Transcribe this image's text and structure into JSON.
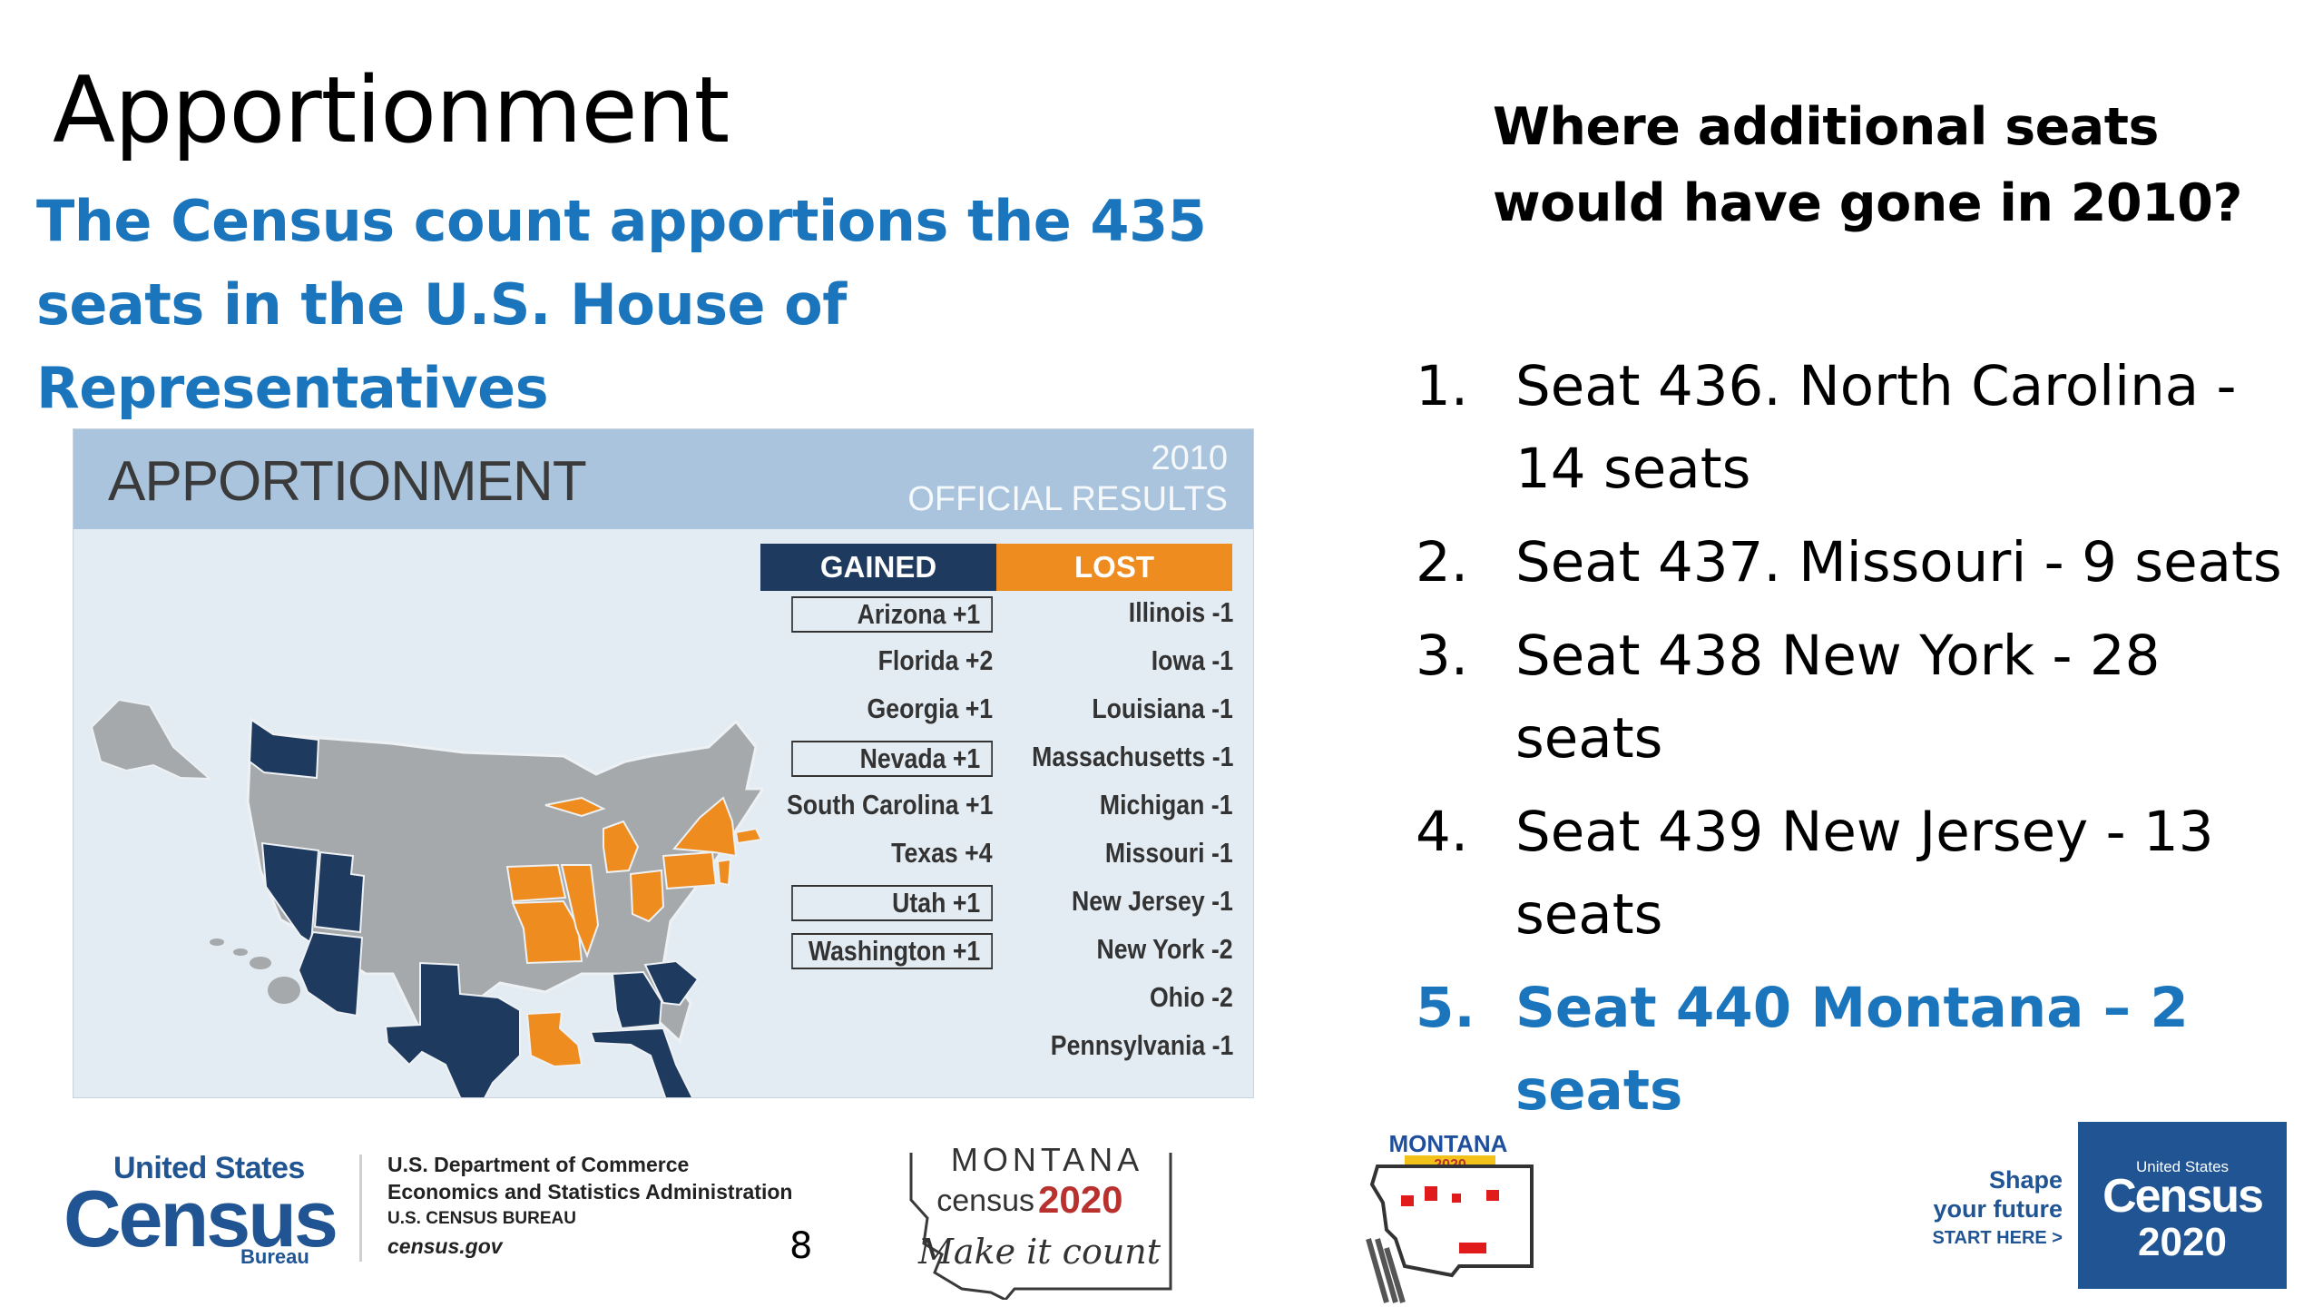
{
  "slide": {
    "title": "Apportionment",
    "subtitle": "The Census count apportions the 435 seats in the U.S. House of Representatives",
    "page_number": "8"
  },
  "right": {
    "heading": "Where additional seats would have gone in 2010?",
    "items": [
      {
        "num": "1.",
        "text": "Seat 436. North Carolina - 14 seats"
      },
      {
        "num": "2.",
        "text": "Seat 437. Missouri - 9 seats"
      },
      {
        "num": "3.",
        "text": "Seat 438 New York - 28 seats"
      },
      {
        "num": "4.",
        "text": "Seat 439 New Jersey - 13 seats"
      },
      {
        "num": "5.",
        "text": "Seat 440 Montana – 2 seats"
      }
    ]
  },
  "graphic": {
    "title": "APPORTIONMENT",
    "year": "2010",
    "results": "OFFICIAL RESULTS",
    "gained_label": "GAINED",
    "lost_label": "LOST",
    "gained": [
      "Arizona +1",
      "Florida +2",
      "Georgia +1",
      "Nevada +1",
      "South Carolina +1",
      "Texas +4",
      "Utah +1",
      "Washington +1"
    ],
    "lost": [
      "Illinois -1",
      "Iowa -1",
      "Louisiana -1",
      "Massachusetts -1",
      "Michigan -1",
      "Missouri -1",
      "New Jersey -1",
      "New York -2",
      "Ohio -2",
      "Pennsylvania -1"
    ],
    "colors": {
      "gained": "#1f3a5f",
      "lost": "#ef8c1f",
      "neutral": "#a6a9ab"
    }
  },
  "footer": {
    "census_us": "United States",
    "census_word": "Census",
    "census_bureau": "Bureau",
    "dept_line1": "U.S. Department of Commerce",
    "dept_line2": "Economics and Statistics Administration",
    "dept_line3": "U.S. CENSUS BUREAU",
    "dept_line4": "census.gov",
    "mt_name": "MONTANA",
    "mt_census": "census",
    "mt_year": "2020",
    "mt_tagline": "Make it count",
    "shape_line1": "Shape",
    "shape_line2": "your future",
    "shape_line3": "START HERE >",
    "badge_us": "United States",
    "badge_census": "Census",
    "badge_year": "2020"
  }
}
